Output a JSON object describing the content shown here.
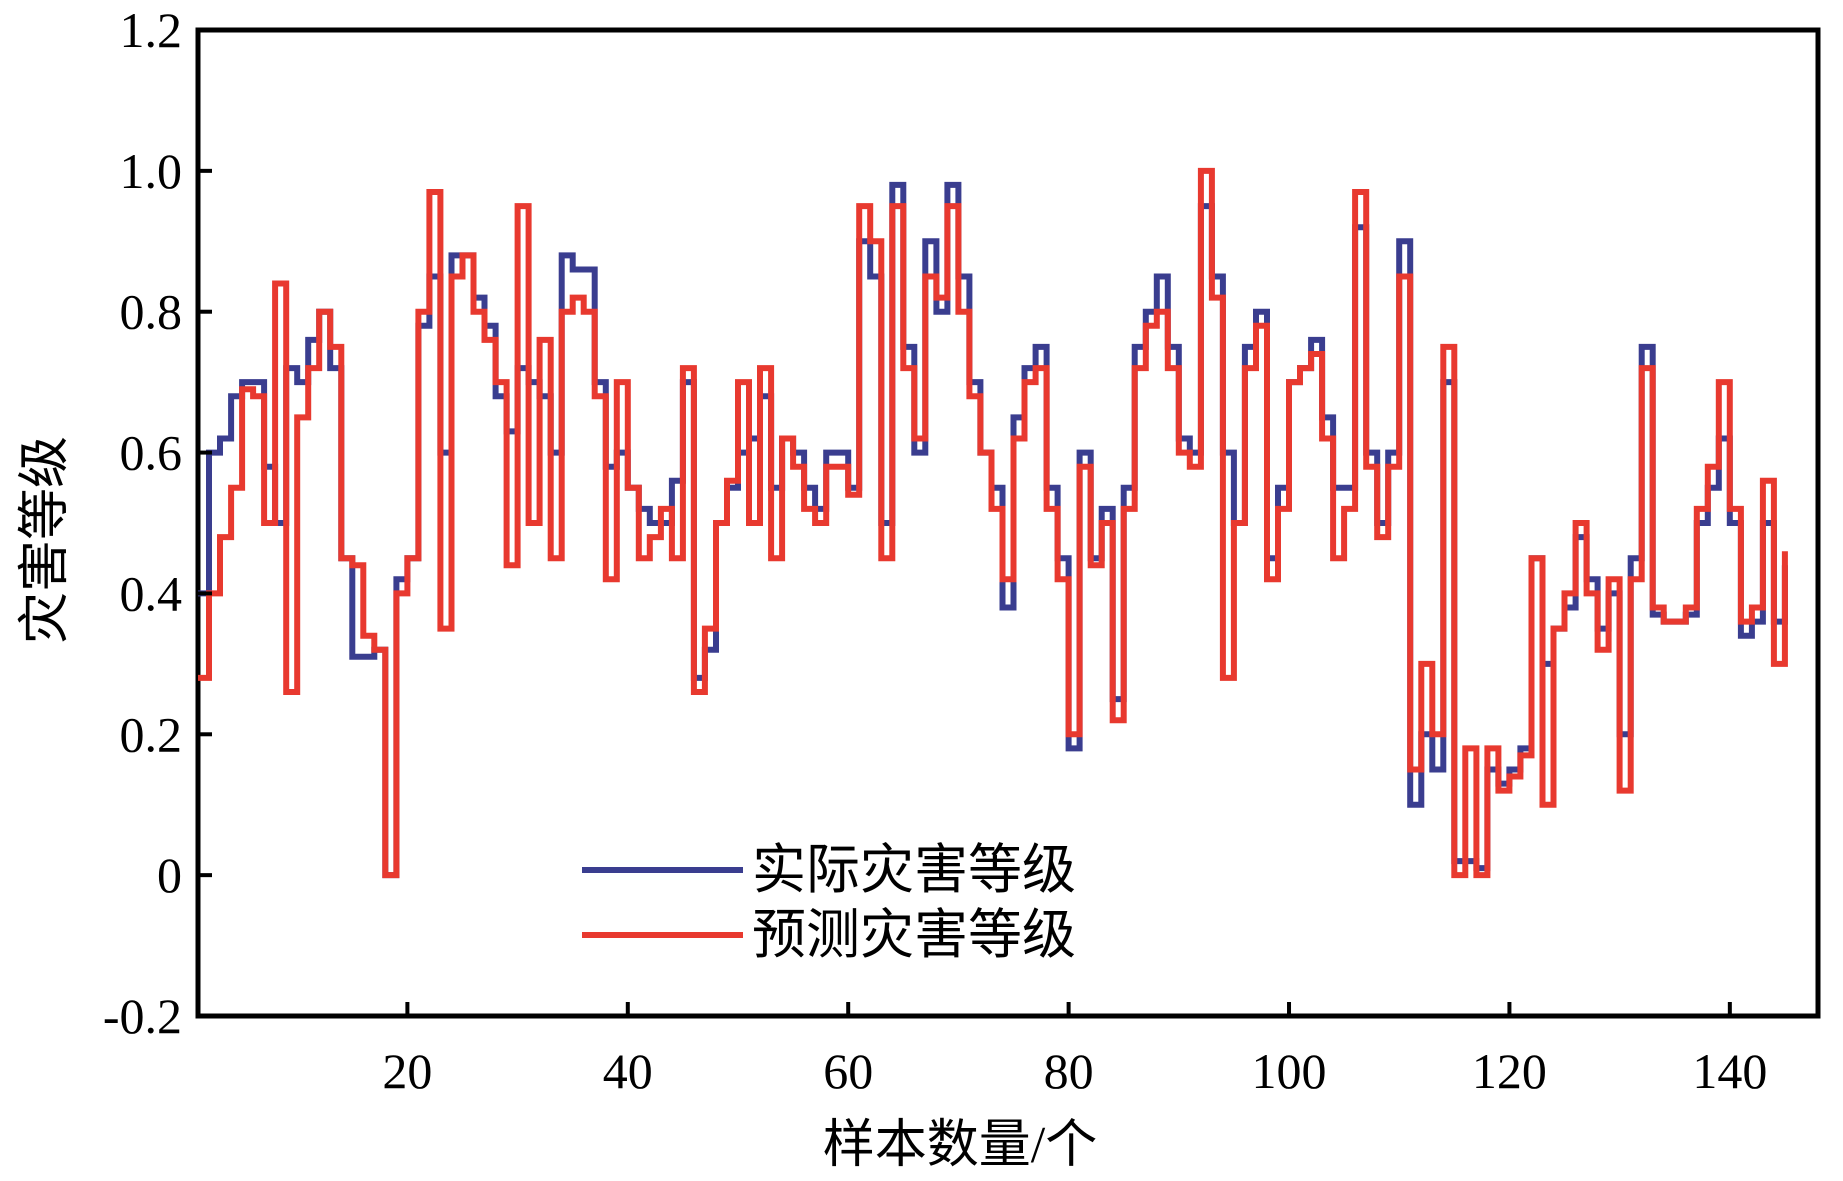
{
  "chart_data": {
    "type": "line",
    "title": "",
    "xlabel": "样本数量/个",
    "ylabel": "灾害等级",
    "xlim": [
      1,
      148
    ],
    "ylim": [
      -0.2,
      1.2
    ],
    "xticks": [
      20,
      40,
      60,
      80,
      100,
      120,
      140
    ],
    "xtick_labels": [
      "20",
      "40",
      "60",
      "80",
      "100",
      "120",
      "140"
    ],
    "yticks": [
      -0.2,
      0,
      0.2,
      0.4,
      0.6,
      0.8,
      1.0,
      1.2
    ],
    "ytick_labels": [
      "-0.2",
      "0",
      "0.2",
      "0.4",
      "0.6",
      "0.8",
      "1.0",
      "1.2"
    ],
    "grid": false,
    "legend_position": "bottom-left",
    "x": [
      1,
      2,
      3,
      4,
      5,
      6,
      7,
      8,
      9,
      10,
      11,
      12,
      13,
      14,
      15,
      16,
      17,
      18,
      19,
      20,
      21,
      22,
      23,
      24,
      25,
      26,
      27,
      28,
      29,
      30,
      31,
      32,
      33,
      34,
      35,
      36,
      37,
      38,
      39,
      40,
      41,
      42,
      43,
      44,
      45,
      46,
      47,
      48,
      49,
      50,
      51,
      52,
      53,
      54,
      55,
      56,
      57,
      58,
      59,
      60,
      61,
      62,
      63,
      64,
      65,
      66,
      67,
      68,
      69,
      70,
      71,
      72,
      73,
      74,
      75,
      76,
      77,
      78,
      79,
      80,
      81,
      82,
      83,
      84,
      85,
      86,
      87,
      88,
      89,
      90,
      91,
      92,
      93,
      94,
      95,
      96,
      97,
      98,
      99,
      100,
      101,
      102,
      103,
      104,
      105,
      106,
      107,
      108,
      109,
      110,
      111,
      112,
      113,
      114,
      115,
      116,
      117,
      118,
      119,
      120,
      121,
      122,
      123,
      124,
      125,
      126,
      127,
      128,
      129,
      130,
      131,
      132,
      133,
      134,
      135,
      136,
      137,
      138,
      139,
      140,
      141,
      142,
      143,
      144,
      145
    ],
    "series": [
      {
        "name": "实际灾害等级",
        "color": "#3a3d8f",
        "values": [
          0.4,
          0.6,
          0.62,
          0.68,
          0.7,
          0.7,
          0.58,
          0.5,
          0.72,
          0.7,
          0.76,
          0.8,
          0.72,
          0.45,
          0.31,
          0.31,
          0.32,
          0.0,
          0.42,
          0.45,
          0.78,
          0.85,
          0.6,
          0.88,
          0.88,
          0.82,
          0.78,
          0.68,
          0.63,
          0.72,
          0.7,
          0.68,
          0.6,
          0.88,
          0.86,
          0.86,
          0.7,
          0.58,
          0.6,
          0.55,
          0.52,
          0.5,
          0.5,
          0.56,
          0.7,
          0.28,
          0.32,
          0.5,
          0.55,
          0.6,
          0.62,
          0.68,
          0.55,
          0.62,
          0.6,
          0.55,
          0.52,
          0.6,
          0.6,
          0.55,
          0.9,
          0.85,
          0.5,
          0.98,
          0.75,
          0.6,
          0.9,
          0.8,
          0.98,
          0.85,
          0.7,
          0.6,
          0.55,
          0.38,
          0.65,
          0.72,
          0.75,
          0.55,
          0.45,
          0.18,
          0.6,
          0.45,
          0.52,
          0.25,
          0.55,
          0.75,
          0.8,
          0.85,
          0.75,
          0.62,
          0.6,
          0.95,
          0.85,
          0.6,
          0.5,
          0.75,
          0.8,
          0.45,
          0.55,
          0.7,
          0.72,
          0.76,
          0.65,
          0.55,
          0.55,
          0.92,
          0.6,
          0.5,
          0.6,
          0.9,
          0.1,
          0.2,
          0.15,
          0.7,
          0.02,
          0.02,
          0.01,
          0.15,
          0.13,
          0.15,
          0.18,
          0.45,
          0.3,
          0.35,
          0.38,
          0.48,
          0.42,
          0.35,
          0.4,
          0.2,
          0.45,
          0.75,
          0.37,
          0.36,
          0.36,
          0.37,
          0.5,
          0.55,
          0.62,
          0.5,
          0.34,
          0.36,
          0.5,
          0.36,
          0.44
        ]
      },
      {
        "name": "预测灾害等级",
        "color": "#e8392f",
        "values": [
          0.28,
          0.4,
          0.48,
          0.55,
          0.69,
          0.68,
          0.5,
          0.84,
          0.26,
          0.65,
          0.72,
          0.8,
          0.75,
          0.45,
          0.44,
          0.34,
          0.32,
          0.0,
          0.4,
          0.45,
          0.8,
          0.97,
          0.35,
          0.85,
          0.88,
          0.8,
          0.76,
          0.7,
          0.44,
          0.95,
          0.5,
          0.76,
          0.45,
          0.8,
          0.82,
          0.8,
          0.68,
          0.42,
          0.7,
          0.55,
          0.45,
          0.48,
          0.52,
          0.45,
          0.72,
          0.26,
          0.35,
          0.5,
          0.56,
          0.7,
          0.5,
          0.72,
          0.45,
          0.62,
          0.58,
          0.52,
          0.5,
          0.58,
          0.58,
          0.54,
          0.95,
          0.9,
          0.45,
          0.95,
          0.72,
          0.62,
          0.85,
          0.82,
          0.95,
          0.8,
          0.68,
          0.6,
          0.52,
          0.42,
          0.62,
          0.7,
          0.72,
          0.52,
          0.42,
          0.2,
          0.58,
          0.44,
          0.5,
          0.22,
          0.52,
          0.72,
          0.78,
          0.8,
          0.72,
          0.6,
          0.58,
          1.0,
          0.82,
          0.28,
          0.5,
          0.72,
          0.78,
          0.42,
          0.52,
          0.7,
          0.72,
          0.74,
          0.62,
          0.45,
          0.52,
          0.97,
          0.58,
          0.48,
          0.58,
          0.85,
          0.15,
          0.3,
          0.2,
          0.75,
          0.0,
          0.18,
          0.0,
          0.18,
          0.12,
          0.14,
          0.17,
          0.45,
          0.1,
          0.35,
          0.4,
          0.5,
          0.4,
          0.32,
          0.42,
          0.12,
          0.42,
          0.72,
          0.38,
          0.36,
          0.36,
          0.38,
          0.52,
          0.58,
          0.7,
          0.52,
          0.36,
          0.38,
          0.56,
          0.3,
          0.46
        ]
      }
    ]
  }
}
